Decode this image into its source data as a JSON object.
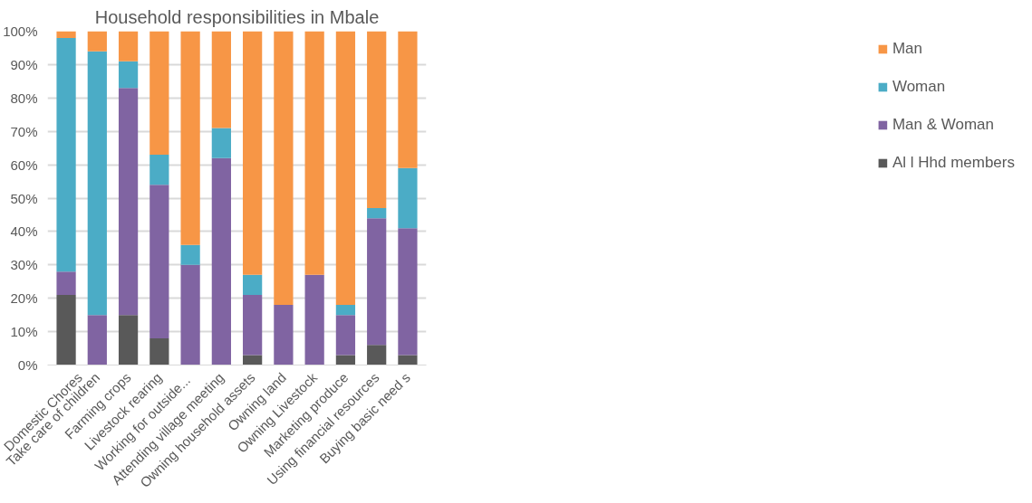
{
  "chart_data": {
    "type": "bar",
    "title": "Household responsibilities in Mbale",
    "stacked": true,
    "categories": [
      "Domestic Chores",
      "Take care of children",
      "Farming crops",
      "Livestock rearing",
      "Working for  outside...",
      "Attending village meeting",
      "Owning household assets",
      "Owning land",
      "Owning Livestock",
      "Marketing produce",
      "Using financial resources",
      "Buying basic need s"
    ],
    "series": [
      {
        "name": "Al l Hhd members",
        "color": "#595959",
        "values": [
          21,
          0,
          15,
          8,
          0,
          0,
          3,
          0,
          0,
          3,
          6,
          3
        ]
      },
      {
        "name": "Man & Woman",
        "color": "#8064a2",
        "values": [
          7,
          15,
          68,
          46,
          30,
          62,
          18,
          18,
          27,
          12,
          38,
          38
        ]
      },
      {
        "name": "Woman",
        "color": "#4bacc6",
        "values": [
          70,
          79,
          8,
          9,
          6,
          9,
          6,
          0,
          0,
          3,
          3,
          18
        ]
      },
      {
        "name": "Man",
        "color": "#f79646",
        "values": [
          2,
          6,
          9,
          37,
          64,
          29,
          73,
          82,
          73,
          82,
          53,
          41
        ]
      }
    ],
    "ylim": [
      0,
      100
    ],
    "yticks": [
      {
        "value": 0,
        "label": "0%"
      },
      {
        "value": 10,
        "label": "10%"
      },
      {
        "value": 20,
        "label": "20%"
      },
      {
        "value": 30,
        "label": "30%"
      },
      {
        "value": 40,
        "label": "40%"
      },
      {
        "value": 50,
        "label": "50%"
      },
      {
        "value": 60,
        "label": "60%"
      },
      {
        "value": 70,
        "label": "70%"
      },
      {
        "value": 80,
        "label": "80%"
      },
      {
        "value": 90,
        "label": "90%"
      },
      {
        "value": 100,
        "label": "100%"
      }
    ],
    "grid": "y",
    "legend": "right"
  }
}
